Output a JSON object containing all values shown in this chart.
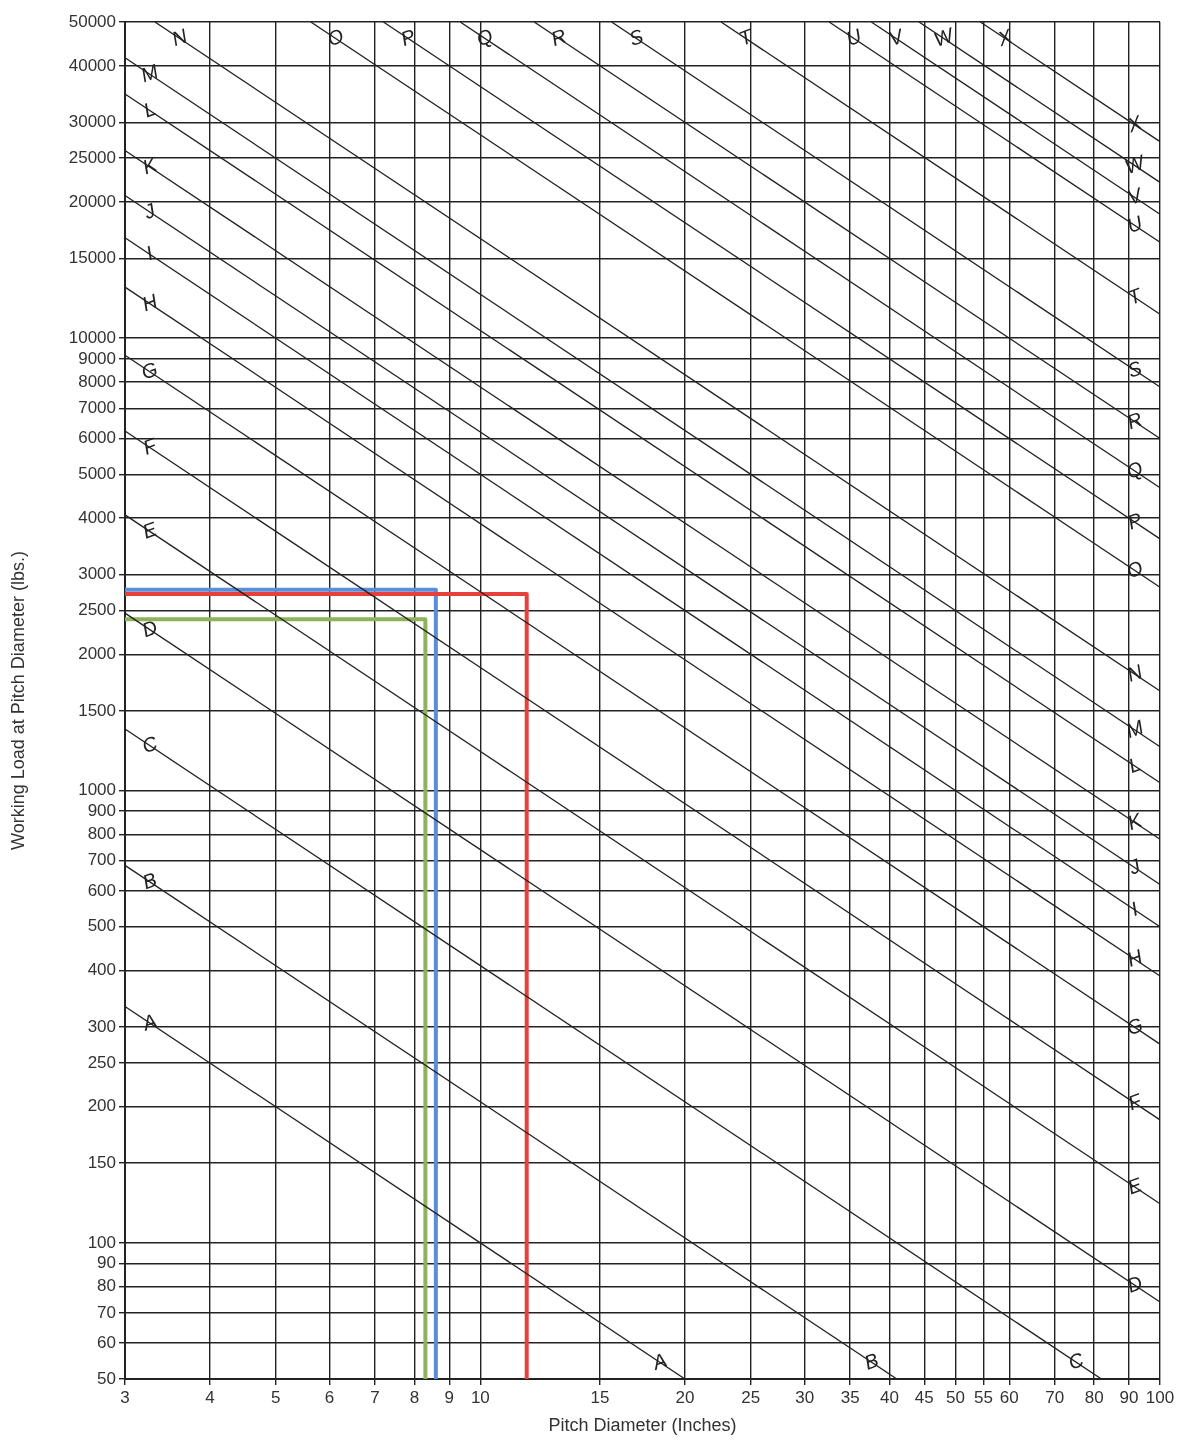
{
  "chart_data": {
    "type": "line",
    "xlabel": "Pitch Diameter (Inches)",
    "ylabel": "Working Load at Pitch Diameter (lbs.)",
    "log": "xy",
    "grid": true,
    "marker": "none",
    "line_style": "solid",
    "xlim": [
      3,
      100
    ],
    "xticks": [
      3,
      4,
      5,
      6,
      7,
      8,
      9,
      10,
      15,
      20,
      25,
      30,
      35,
      40,
      45,
      50,
      55,
      60,
      70,
      80,
      90,
      100
    ],
    "ylim": [
      50,
      50000
    ],
    "yticks": [
      50,
      60,
      70,
      80,
      90,
      100,
      150,
      200,
      250,
      300,
      400,
      500,
      600,
      700,
      800,
      900,
      1000,
      1500,
      2000,
      2500,
      3000,
      4000,
      5000,
      6000,
      7000,
      8000,
      9000,
      10000,
      15000,
      20000,
      25000,
      30000,
      40000,
      50000
    ],
    "series": [
      {
        "name": "A",
        "color": "#222222",
        "x": [
          3,
          20
        ],
        "values": [
          333,
          50
        ]
      },
      {
        "name": "B",
        "color": "#222222",
        "x": [
          3,
          41
        ],
        "values": [
          683,
          50
        ]
      },
      {
        "name": "C",
        "color": "#222222",
        "x": [
          3,
          82
        ],
        "values": [
          1367,
          50
        ]
      },
      {
        "name": "D",
        "color": "#222222",
        "x": [
          3,
          100
        ],
        "values": [
          2467,
          74
        ]
      },
      {
        "name": "E",
        "color": "#222222",
        "x": [
          3,
          100
        ],
        "values": [
          4067,
          122
        ]
      },
      {
        "name": "F",
        "color": "#222222",
        "x": [
          3,
          100
        ],
        "values": [
          6233,
          187
        ]
      },
      {
        "name": "G",
        "color": "#222222",
        "x": [
          3,
          100
        ],
        "values": [
          9167,
          275
        ]
      },
      {
        "name": "H",
        "color": "#222222",
        "x": [
          3,
          100
        ],
        "values": [
          12967,
          389
        ]
      },
      {
        "name": "I",
        "color": "#222222",
        "x": [
          3,
          100
        ],
        "values": [
          16667,
          500
        ]
      },
      {
        "name": "J",
        "color": "#222222",
        "x": [
          3,
          100
        ],
        "values": [
          20667,
          620
        ]
      },
      {
        "name": "K",
        "color": "#222222",
        "x": [
          3,
          100
        ],
        "values": [
          26000,
          780
        ]
      },
      {
        "name": "L",
        "color": "#222222",
        "x": [
          3,
          100
        ],
        "values": [
          34667,
          1040
        ]
      },
      {
        "name": "M",
        "color": "#222222",
        "x": [
          3,
          100
        ],
        "values": [
          41667,
          1250
        ]
      },
      {
        "name": "N",
        "color": "#222222",
        "x": [
          3.32,
          100
        ],
        "values": [
          50000,
          1660
        ]
      },
      {
        "name": "O",
        "color": "#222222",
        "x": [
          5.63,
          100
        ],
        "values": [
          50000,
          2815
        ]
      },
      {
        "name": "P",
        "color": "#222222",
        "x": [
          7.2,
          100
        ],
        "values": [
          50000,
          3600
        ]
      },
      {
        "name": "Q",
        "color": "#222222",
        "x": [
          9.34,
          100
        ],
        "values": [
          50000,
          4670
        ]
      },
      {
        "name": "R",
        "color": "#222222",
        "x": [
          12,
          100
        ],
        "values": [
          50000,
          6000
        ]
      },
      {
        "name": "S",
        "color": "#222222",
        "x": [
          15.6,
          100
        ],
        "values": [
          50000,
          7800
        ]
      },
      {
        "name": "T",
        "color": "#222222",
        "x": [
          22.6,
          100
        ],
        "values": [
          50000,
          11300
        ]
      },
      {
        "name": "U",
        "color": "#222222",
        "x": [
          32.6,
          100
        ],
        "values": [
          50000,
          16300
        ]
      },
      {
        "name": "V",
        "color": "#222222",
        "x": [
          37.6,
          100
        ],
        "values": [
          50000,
          18800
        ]
      },
      {
        "name": "W",
        "color": "#222222",
        "x": [
          44.2,
          100
        ],
        "values": [
          50000,
          22100
        ]
      },
      {
        "name": "X",
        "color": "#222222",
        "x": [
          54.4,
          100
        ],
        "values": [
          50000,
          27200
        ]
      },
      {
        "color": "#e8413c",
        "x": [
          3,
          11.7,
          11.7
        ],
        "values": [
          2720,
          2720,
          50
        ]
      },
      {
        "color": "#5b8ed6",
        "x": [
          3,
          8.6,
          8.6
        ],
        "values": [
          2780,
          2780,
          50
        ]
      },
      {
        "color": "#8fb35a",
        "x": [
          3,
          8.3,
          8.3
        ],
        "values": [
          2390,
          2390,
          50
        ]
      }
    ]
  }
}
